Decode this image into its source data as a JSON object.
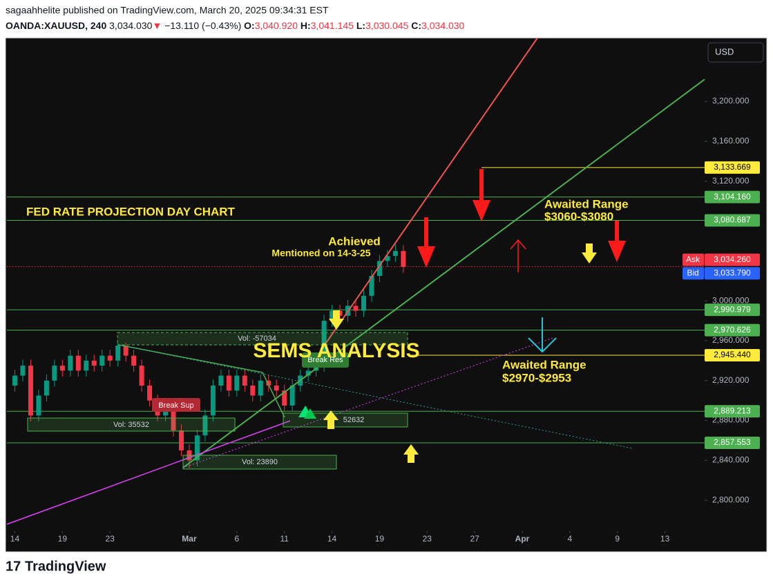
{
  "header": {
    "publisher": "sagaahhelite published on TradingView.com, March 20, 2025 09:34:31 EST",
    "symbol": "OANDA:XAUUSD, 240",
    "last": "3,034.030",
    "change_arrow": "▼",
    "change": "−13.110 (−0.43%)",
    "ohlc": [
      {
        "label": "O:",
        "value": "3,040.920"
      },
      {
        "label": "H:",
        "value": "3,041.145"
      },
      {
        "label": "L:",
        "value": "3,030.045"
      },
      {
        "label": "C:",
        "value": "3,034.030"
      }
    ]
  },
  "chart_data": {
    "type": "candlestick",
    "currency": "USD",
    "up_color": "#089981",
    "down_color": "#f23645",
    "xlim": [
      -3,
      261
    ],
    "xticks": [
      {
        "value": 0,
        "label": "14"
      },
      {
        "value": 18,
        "label": "19"
      },
      {
        "value": 36,
        "label": "23"
      },
      {
        "value": 66,
        "label": "Mar"
      },
      {
        "value": 84,
        "label": "6"
      },
      {
        "value": 102,
        "label": "11"
      },
      {
        "value": 120,
        "label": "14"
      },
      {
        "value": 138,
        "label": "19"
      },
      {
        "value": 156,
        "label": "23"
      },
      {
        "value": 174,
        "label": "27"
      },
      {
        "value": 192,
        "label": "Apr"
      },
      {
        "value": 210,
        "label": "4"
      },
      {
        "value": 228,
        "label": "9"
      },
      {
        "value": 246,
        "label": "13"
      }
    ],
    "ylim": [
      2769,
      3263.7
    ],
    "yticks": [
      {
        "value": 2800,
        "label": "2,800.000"
      },
      {
        "value": 2840,
        "label": "2,840.000"
      },
      {
        "value": 2880,
        "label": "2,880.000"
      },
      {
        "value": 2920,
        "label": "2,920.000"
      },
      {
        "value": 2960,
        "label": "2,960.000"
      },
      {
        "value": 3000,
        "label": "3,000.000"
      },
      {
        "value": 3120,
        "label": "3,120.000"
      },
      {
        "value": 3160,
        "label": "3,160.000"
      },
      {
        "value": 3200,
        "label": "3,200.000"
      }
    ],
    "x": [
      0,
      3,
      6,
      9,
      12,
      15,
      18,
      21,
      24,
      27,
      30,
      33,
      36,
      39,
      42,
      45,
      48,
      51,
      54,
      57,
      60,
      63,
      66,
      69,
      72,
      75,
      78,
      81,
      84,
      87,
      90,
      93,
      96,
      99,
      102,
      105,
      108,
      111,
      114,
      117,
      120,
      123,
      126,
      129,
      132,
      135,
      138,
      141,
      144,
      147
    ],
    "open": [
      2915,
      2925,
      2935,
      2885,
      2905,
      2920,
      2935,
      2930,
      2945,
      2930,
      2940,
      2935,
      2945,
      2940,
      2955,
      2945,
      2935,
      2915,
      2900,
      2885,
      2895,
      2870,
      2850,
      2840,
      2865,
      2885,
      2915,
      2925,
      2910,
      2925,
      2915,
      2905,
      2920,
      2915,
      2910,
      2895,
      2915,
      2925,
      2930,
      2935,
      2980,
      2990,
      2985,
      2995,
      2990,
      3005,
      3025,
      3040,
      3045,
      3050
    ],
    "high": [
      2931,
      2941,
      2941,
      2911,
      2926,
      2941,
      2941,
      2951,
      2951,
      2946,
      2946,
      2951,
      2951,
      2958,
      2958,
      2951,
      2941,
      2921,
      2906,
      2901,
      2901,
      2876,
      2856,
      2871,
      2891,
      2921,
      2931,
      2931,
      2931,
      2931,
      2921,
      2926,
      2926,
      2921,
      2916,
      2921,
      2931,
      2936,
      2941,
      2986,
      2996,
      2996,
      3001,
      3001,
      3011,
      3031,
      3046,
      3051,
      3057,
      3056
    ],
    "low": [
      2909,
      2919,
      2879,
      2879,
      2899,
      2914,
      2924,
      2924,
      2924,
      2924,
      2929,
      2929,
      2934,
      2934,
      2939,
      2929,
      2909,
      2894,
      2879,
      2879,
      2864,
      2844,
      2832,
      2834,
      2859,
      2879,
      2909,
      2904,
      2904,
      2909,
      2899,
      2899,
      2909,
      2904,
      2889,
      2889,
      2909,
      2919,
      2924,
      2929,
      2974,
      2979,
      2979,
      2984,
      2984,
      2999,
      3019,
      3034,
      3039,
      3028
    ],
    "close": [
      2925,
      2935,
      2885,
      2905,
      2920,
      2935,
      2930,
      2945,
      2930,
      2940,
      2935,
      2945,
      2940,
      2955,
      2945,
      2935,
      2915,
      2900,
      2885,
      2895,
      2870,
      2850,
      2840,
      2865,
      2885,
      2915,
      2925,
      2910,
      2925,
      2915,
      2905,
      2920,
      2915,
      2910,
      2895,
      2915,
      2925,
      2930,
      2935,
      2980,
      2990,
      2985,
      2995,
      2990,
      3005,
      3025,
      3040,
      3045,
      3050,
      3034
    ],
    "price_lines": [
      {
        "value": 3133.669,
        "label": "3,133.669",
        "color": "#ffeb3b",
        "text_color": "#000000"
      },
      {
        "value": 3104.16,
        "label": "3,104.160",
        "color": "#4caf50",
        "text_color": "#ffffff"
      },
      {
        "value": 3080.687,
        "label": "3,080.687",
        "color": "#4caf50",
        "text_color": "#ffffff"
      },
      {
        "value": 2990.979,
        "label": "2,990.979",
        "color": "#4caf50",
        "text_color": "#ffffff"
      },
      {
        "value": 2970.626,
        "label": "2,970.626",
        "color": "#4caf50",
        "text_color": "#ffffff"
      },
      {
        "value": 2945.44,
        "label": "2,945.440",
        "color": "#ffeb3b",
        "text_color": "#000000"
      },
      {
        "value": 2889.213,
        "label": "2,889.213",
        "color": "#4caf50",
        "text_color": "#ffffff"
      },
      {
        "value": 2857.553,
        "label": "2,857.553",
        "color": "#4caf50",
        "text_color": "#ffffff"
      }
    ],
    "ask": {
      "name": "Ask",
      "value": 3034.26,
      "label": "3,034.260",
      "color": "#f23645"
    },
    "bid": {
      "name": "Bid",
      "value": 3033.79,
      "label": "3,033.790",
      "color": "#2962ff"
    },
    "annotations": {
      "chart_title": "FED RATE PROJECTION DAY CHART",
      "achieved": "Achieved",
      "mentioned": "Mentioned on 14-3-25",
      "brand": "SEMS ANALYSIS",
      "range_up_title": "Awaited Range",
      "range_up": "$3060-$3080",
      "range_down_title": "Awaited Range",
      "range_down": "$2970-$2953",
      "vol_1": "Vol: -57034",
      "vol_2": "Vol: 35532",
      "vol_3": "Vol: 23890",
      "vol_4": "52632",
      "break_sup": "Break Sup",
      "break_res": "Break Res"
    }
  },
  "footer": {
    "brand": "TradingView"
  }
}
